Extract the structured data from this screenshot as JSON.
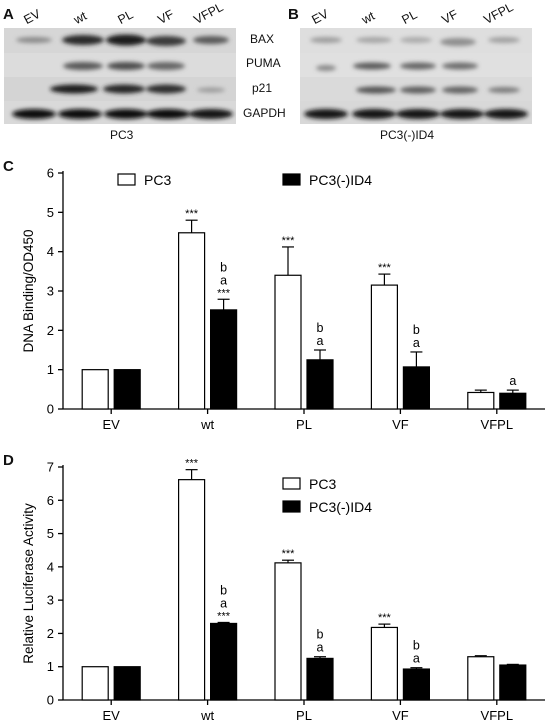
{
  "panels": {
    "A": "A",
    "B": "B",
    "C": "C",
    "D": "D"
  },
  "blot_A": {
    "lanes": [
      "EV",
      "wt",
      "PL",
      "VF",
      "VFPL"
    ],
    "cell_line": "PC3"
  },
  "blot_B": {
    "lanes": [
      "EV",
      "wt",
      "PL",
      "VF",
      "VFPL"
    ],
    "cell_line": "PC3(-)ID4"
  },
  "proteins": [
    "BAX",
    "PUMA",
    "p21",
    "GAPDH"
  ],
  "chart_data": [
    {
      "type": "bar",
      "categories": [
        "EV",
        "wt",
        "PL",
        "VF",
        "VFPL"
      ],
      "ylabel": "DNA Binding/OD450",
      "xlabel": "",
      "ylim": [
        0,
        6
      ],
      "yticks": [
        0,
        1,
        2,
        3,
        4,
        5,
        6
      ],
      "legend_position": "top",
      "series": [
        {
          "name": "PC3",
          "fill": "#ffffff",
          "values": [
            1.0,
            4.48,
            3.4,
            3.15,
            0.42
          ],
          "errors": [
            0,
            0.32,
            0.72,
            0.28,
            0.06
          ]
        },
        {
          "name": "PC3(-)ID4",
          "fill": "#000000",
          "values": [
            1.0,
            2.52,
            1.25,
            1.07,
            0.4
          ],
          "errors": [
            0,
            0.27,
            0.25,
            0.38,
            0.08
          ]
        }
      ],
      "annotations": [
        {
          "category": 1,
          "series": 0,
          "lines": [
            "***"
          ]
        },
        {
          "category": 1,
          "series": 1,
          "lines": [
            "b",
            "a",
            "***"
          ]
        },
        {
          "category": 2,
          "series": 0,
          "lines": [
            "***"
          ]
        },
        {
          "category": 2,
          "series": 1,
          "lines": [
            "b",
            "a"
          ]
        },
        {
          "category": 3,
          "series": 0,
          "lines": [
            "***"
          ]
        },
        {
          "category": 3,
          "series": 1,
          "lines": [
            "b",
            "a"
          ]
        },
        {
          "category": 4,
          "series": 1,
          "lines": [
            "a"
          ]
        }
      ]
    },
    {
      "type": "bar",
      "categories": [
        "EV",
        "wt",
        "PL",
        "VF",
        "VFPL"
      ],
      "ylabel": "Relative Luciferase Activity",
      "xlabel": "",
      "ylim": [
        0,
        7
      ],
      "yticks": [
        0,
        1,
        2,
        3,
        4,
        5,
        6,
        7
      ],
      "legend_position": "top-right",
      "series": [
        {
          "name": "PC3",
          "fill": "#ffffff",
          "values": [
            1.0,
            6.62,
            4.12,
            2.18,
            1.3
          ],
          "errors": [
            0,
            0.3,
            0.08,
            0.1,
            0.03
          ]
        },
        {
          "name": "PC3(-)ID4",
          "fill": "#000000",
          "values": [
            1.0,
            2.3,
            1.25,
            0.93,
            1.05
          ],
          "errors": [
            0,
            0.03,
            0.05,
            0.04,
            0.02
          ]
        }
      ],
      "annotations": [
        {
          "category": 1,
          "series": 0,
          "lines": [
            "***"
          ]
        },
        {
          "category": 1,
          "series": 1,
          "lines": [
            "b",
            "a",
            "***"
          ]
        },
        {
          "category": 2,
          "series": 0,
          "lines": [
            "***"
          ]
        },
        {
          "category": 2,
          "series": 1,
          "lines": [
            "b",
            "a"
          ]
        },
        {
          "category": 3,
          "series": 0,
          "lines": [
            "***"
          ]
        },
        {
          "category": 3,
          "series": 1,
          "lines": [
            "b",
            "a"
          ]
        }
      ]
    }
  ]
}
